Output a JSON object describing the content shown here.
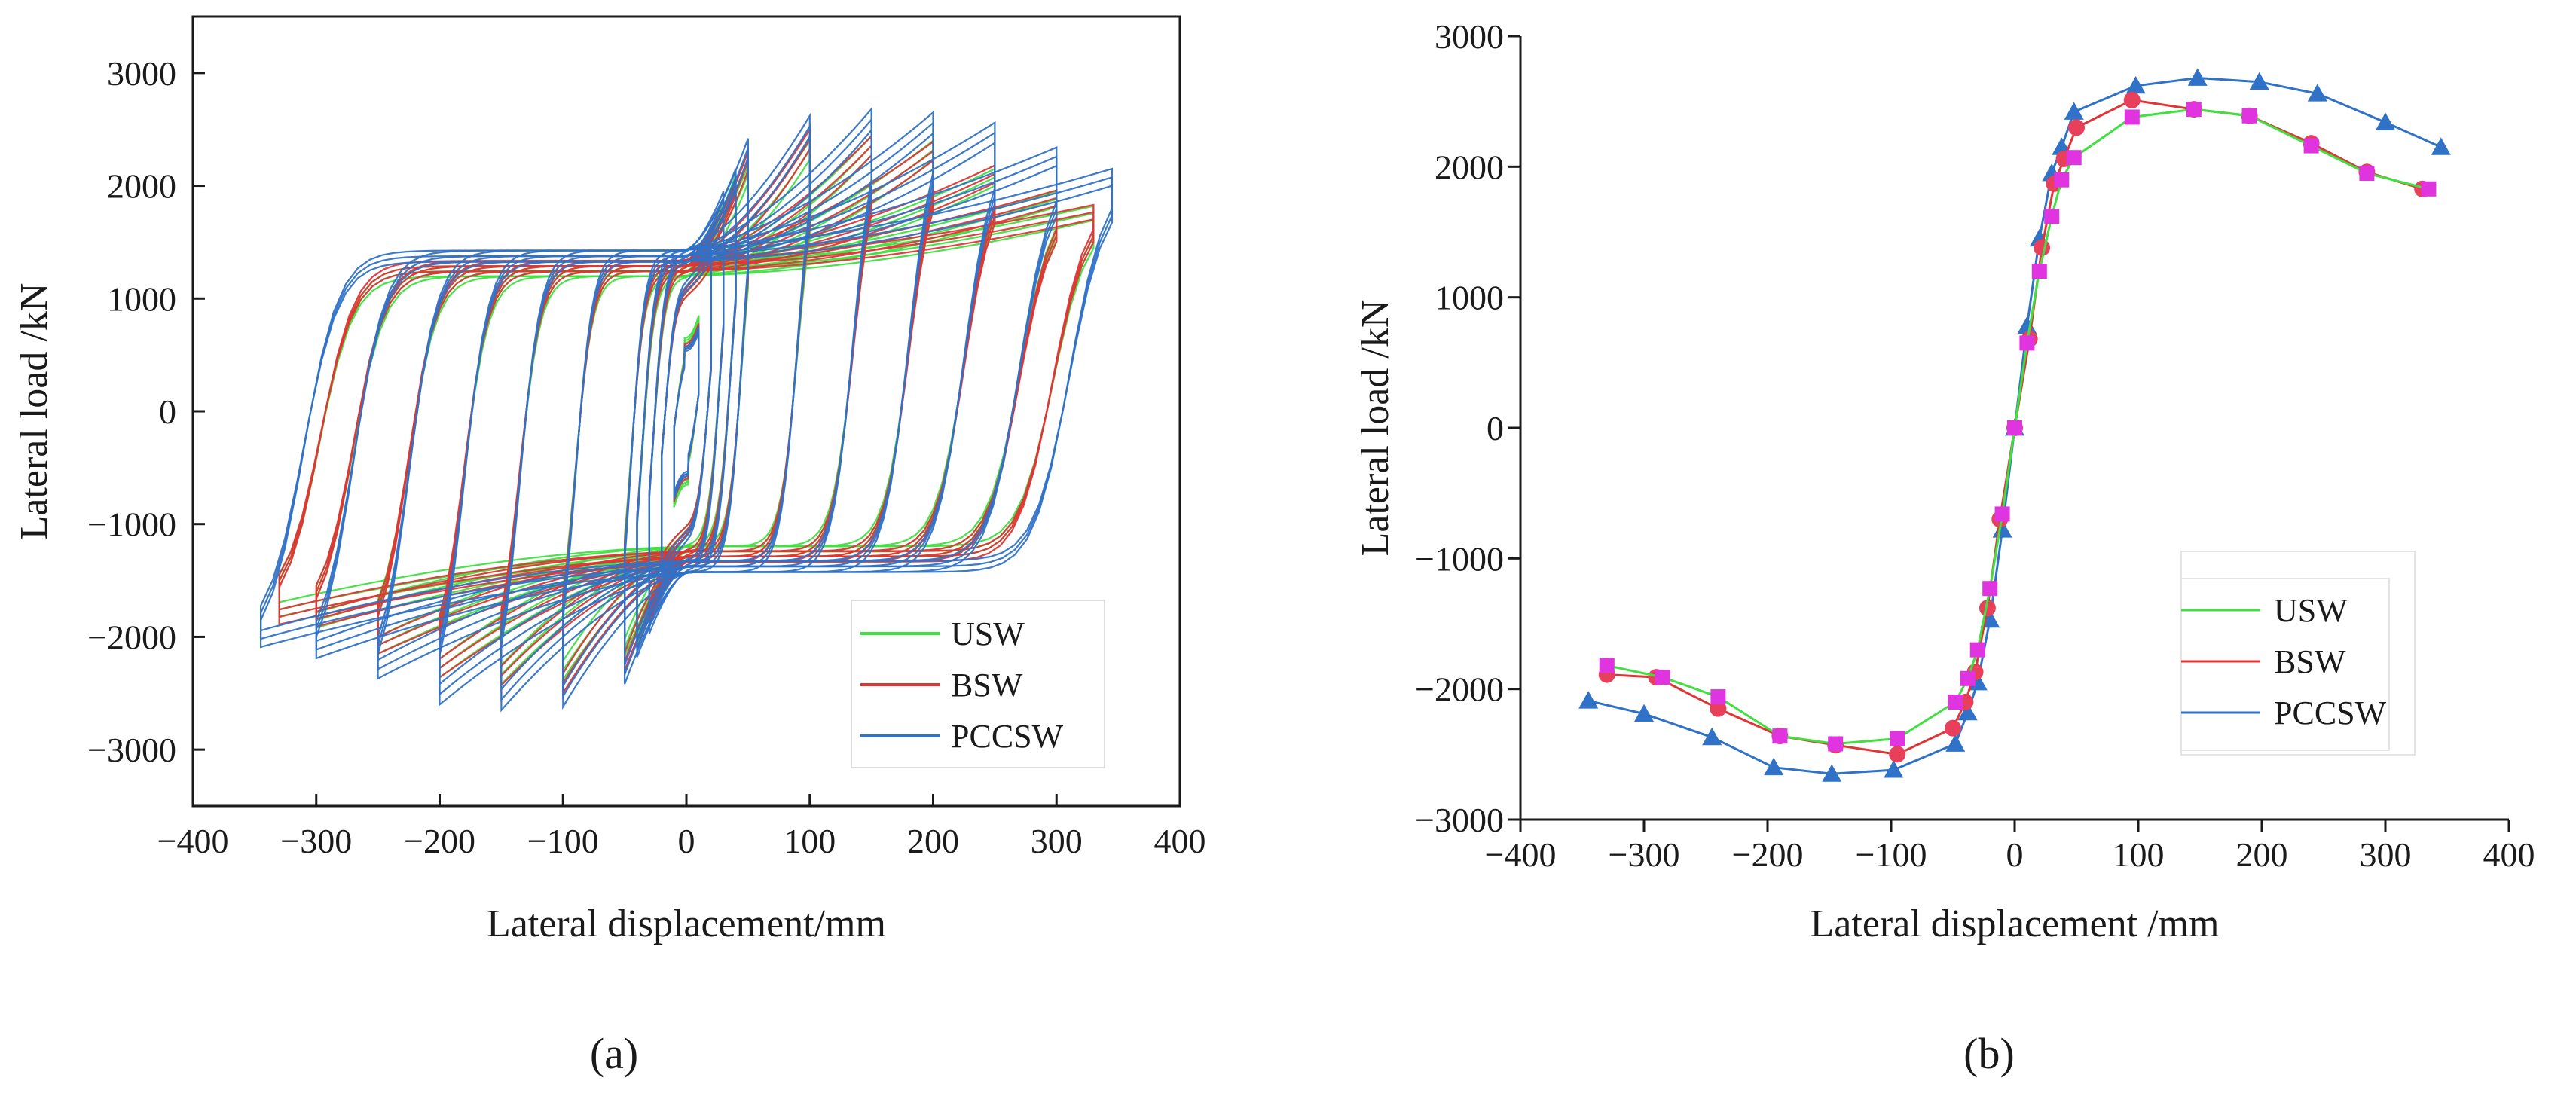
{
  "colors": {
    "USW": "#3fe03f",
    "BSW": "#e03535",
    "PCCSW": "#2f72c8",
    "marker_bsw": "#e8405a",
    "marker_usw": "#e034e0"
  },
  "panels": {
    "a": {
      "label": "(a)"
    },
    "b": {
      "label": "(b)"
    }
  },
  "chart_data": [
    {
      "id": "a",
      "type": "line",
      "title": "",
      "xlabel": "Lateral displacement/mm",
      "ylabel": "Lateral load /kN",
      "xlim": [
        -400,
        400
      ],
      "ylim": [
        -3500,
        3500
      ],
      "xticks": [
        -400,
        -300,
        -200,
        -100,
        0,
        100,
        200,
        300,
        400
      ],
      "yticks": [
        -3000,
        -2000,
        -1000,
        0,
        1000,
        2000,
        3000
      ],
      "xtick_labels": [
        "−400",
        "−300",
        "−200",
        "−100",
        "0",
        "100",
        "200",
        "300",
        "400"
      ],
      "ytick_labels": [
        "−3000",
        "−2000",
        "−1000",
        "0",
        "1000",
        "2000",
        "3000"
      ],
      "legend": [
        "USW",
        "BSW",
        "PCCSW"
      ],
      "legend_position": "bottom-right",
      "series": [
        {
          "name": "USW",
          "amplitudes": [
            10,
            20,
            30,
            40,
            50,
            100,
            150,
            200,
            250,
            300,
            330
          ],
          "peak_pos": [
            850,
            1380,
            1860,
            2100,
            2180,
            2400,
            2440,
            2400,
            2150,
            1950,
            1820
          ],
          "peak_neg": [
            -850,
            -1390,
            -1880,
            -2080,
            -2170,
            -2380,
            -2420,
            -2360,
            -2150,
            -1920,
            -1820
          ],
          "plateau": 1400,
          "cycles_per_level": 3
        },
        {
          "name": "BSW",
          "amplitudes": [
            10,
            20,
            30,
            40,
            50,
            100,
            150,
            200,
            250,
            300,
            330
          ],
          "peak_pos": [
            780,
            1380,
            1880,
            2060,
            2300,
            2500,
            2440,
            2390,
            2180,
            1960,
            1830
          ],
          "peak_neg": [
            -800,
            -1380,
            -1870,
            -2100,
            -2300,
            -2500,
            -2430,
            -2360,
            -2150,
            -1910,
            -1890
          ],
          "plateau": 1450,
          "cycles_per_level": 3
        },
        {
          "name": "PCCSW",
          "amplitudes": [
            10,
            20,
            30,
            40,
            50,
            100,
            150,
            200,
            250,
            300,
            345
          ],
          "peak_pos": [
            750,
            1450,
            1950,
            2150,
            2420,
            2620,
            2680,
            2650,
            2560,
            2340,
            2150
          ],
          "peak_neg": [
            -780,
            -1470,
            -1970,
            -2180,
            -2420,
            -2620,
            -2650,
            -2600,
            -2370,
            -2190,
            -2090
          ],
          "plateau": 1550,
          "cycles_per_level": 3
        }
      ]
    },
    {
      "id": "b",
      "type": "line",
      "title": "",
      "xlabel": "Lateral displacement /mm",
      "ylabel": "Lateral load /kN",
      "xlim": [
        -400,
        400
      ],
      "ylim": [
        -3000,
        3000
      ],
      "xticks": [
        -400,
        -300,
        -200,
        -100,
        0,
        100,
        200,
        300,
        400
      ],
      "yticks": [
        -3000,
        -2000,
        -1000,
        0,
        1000,
        2000,
        3000
      ],
      "xtick_labels": [
        "−400",
        "−300",
        "−200",
        "−100",
        "0",
        "100",
        "200",
        "300",
        "400"
      ],
      "ytick_labels": [
        "−3000",
        "−2000",
        "−1000",
        "0",
        "1000",
        "2000",
        "3000"
      ],
      "legend": [
        "USW",
        "BSW",
        "PCCSW"
      ],
      "legend_position": "bottom-right",
      "series": [
        {
          "name": "USW",
          "marker": "square",
          "x": [
            -330,
            -285,
            -240,
            -190,
            -145,
            -95,
            -48,
            -38,
            -30,
            -20,
            -10,
            0,
            10,
            20,
            30,
            38,
            48,
            95,
            145,
            190,
            240,
            285,
            335
          ],
          "y": [
            -1820,
            -1910,
            -2060,
            -2360,
            -2420,
            -2380,
            -2100,
            -1920,
            -1700,
            -1230,
            -660,
            0,
            650,
            1200,
            1620,
            1900,
            2070,
            2380,
            2440,
            2390,
            2160,
            1950,
            1830
          ]
        },
        {
          "name": "BSW",
          "marker": "circle",
          "x": [
            -330,
            -290,
            -240,
            -190,
            -145,
            -95,
            -50,
            -40,
            -32,
            -22,
            -12,
            0,
            12,
            22,
            32,
            40,
            50,
            95,
            145,
            190,
            240,
            285,
            330
          ],
          "y": [
            -1890,
            -1910,
            -2150,
            -2360,
            -2430,
            -2500,
            -2300,
            -2100,
            -1870,
            -1380,
            -700,
            0,
            680,
            1380,
            1870,
            2060,
            2300,
            2510,
            2440,
            2390,
            2180,
            1960,
            1830
          ]
        },
        {
          "name": "PCCSW",
          "marker": "triangle",
          "x": [
            -345,
            -300,
            -245,
            -195,
            -148,
            -98,
            -48,
            -38,
            -30,
            -20,
            -10,
            0,
            10,
            20,
            30,
            38,
            48,
            98,
            148,
            198,
            245,
            300,
            345
          ],
          "y": [
            -2090,
            -2190,
            -2370,
            -2600,
            -2650,
            -2620,
            -2420,
            -2180,
            -1950,
            -1470,
            -780,
            0,
            780,
            1450,
            1950,
            2150,
            2420,
            2620,
            2680,
            2650,
            2560,
            2340,
            2150
          ]
        }
      ]
    }
  ]
}
